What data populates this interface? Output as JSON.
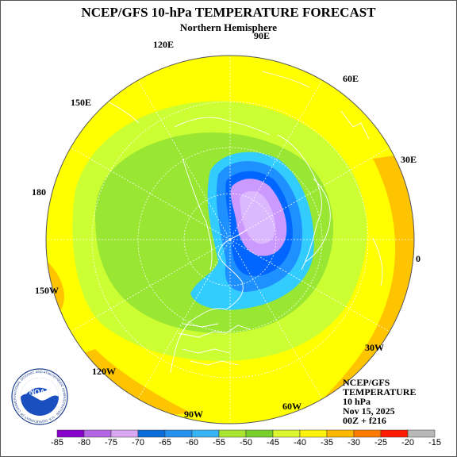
{
  "title": "NCEP/GFS 10-hPa TEMPERATURE FORECAST",
  "subtitle": "Northern Hemisphere",
  "lon_labels": {
    "e90": "90E",
    "e120": "120E",
    "e60": "60E",
    "e150": "150E",
    "e30": "30E",
    "deg180": "180",
    "deg0": "0",
    "w150": "150W",
    "w30": "30W",
    "w120": "120W",
    "w90": "90W",
    "w60": "60W"
  },
  "info": {
    "line1": "NCEP/GFS",
    "line2": "TEMPERATURE",
    "line3": "10 hPa",
    "line4": "Nov 15, 2025",
    "line5": "00Z + f216"
  },
  "logo_text": "NOAA",
  "logo_ring_text": "NATIONAL OCEANIC AND ATMOSPHERIC ADMINISTRATION · U.S. DEPARTMENT OF COMMERCE",
  "colorbar": {
    "labels": [
      "-85",
      "-80",
      "-75",
      "-70",
      "-65",
      "-60",
      "-55",
      "-50",
      "-45",
      "-40",
      "-35",
      "-30",
      "-25",
      "-20",
      "-15"
    ],
    "colors": [
      "#8800cc",
      "#b366e6",
      "#d9a6f2",
      "#0a6cd9",
      "#2591ee",
      "#36b4f5",
      "#a8e430",
      "#78d02a",
      "#dbf52e",
      "#fff20a",
      "#ffb800",
      "#ff7a00",
      "#ff1a00",
      "#b8b8b8",
      "#808080"
    ]
  },
  "colors": {
    "yellow": "#ffff00",
    "orange": "#ffc400",
    "light_green": "#ccff33",
    "green": "#99e633",
    "light_blue": "#33ccff",
    "blue": "#1e90ff",
    "dark_blue": "#0066ff",
    "violet": "#cc99ff",
    "lavender": "#dcb8ff"
  }
}
